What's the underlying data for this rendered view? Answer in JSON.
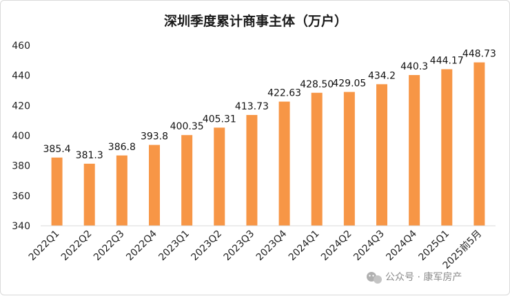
{
  "chart_data": {
    "type": "bar",
    "title": "深圳季度累计商事主体（万户）",
    "categories": [
      "2022Q1",
      "2022Q2",
      "2022Q3",
      "2022Q4",
      "2023Q1",
      "2023Q2",
      "2023Q3",
      "2023Q4",
      "2024Q1",
      "2024Q2",
      "2024Q3",
      "2024Q4",
      "2025Q1",
      "2025前5月"
    ],
    "values": [
      385.4,
      381.3,
      386.8,
      393.8,
      400.35,
      405.31,
      413.73,
      422.63,
      428.5,
      429.05,
      434.2,
      440.3,
      444.17,
      448.73
    ],
    "data_labels": [
      "385.4",
      "381.3",
      "386.8",
      "393.8",
      "400.35",
      "405.31",
      "413.73",
      "422.63",
      "428.50",
      "429.05",
      "434.2",
      "440.3",
      "444.17",
      "448.73"
    ],
    "ylim": [
      340,
      460
    ],
    "yticks": [
      340,
      360,
      380,
      400,
      420,
      440,
      460
    ],
    "xlabel": "",
    "ylabel": "",
    "grid": false,
    "bar_color": "#F79646"
  },
  "watermark": {
    "text": "公众号 · 康军房产",
    "icon": "wechat-icon"
  }
}
